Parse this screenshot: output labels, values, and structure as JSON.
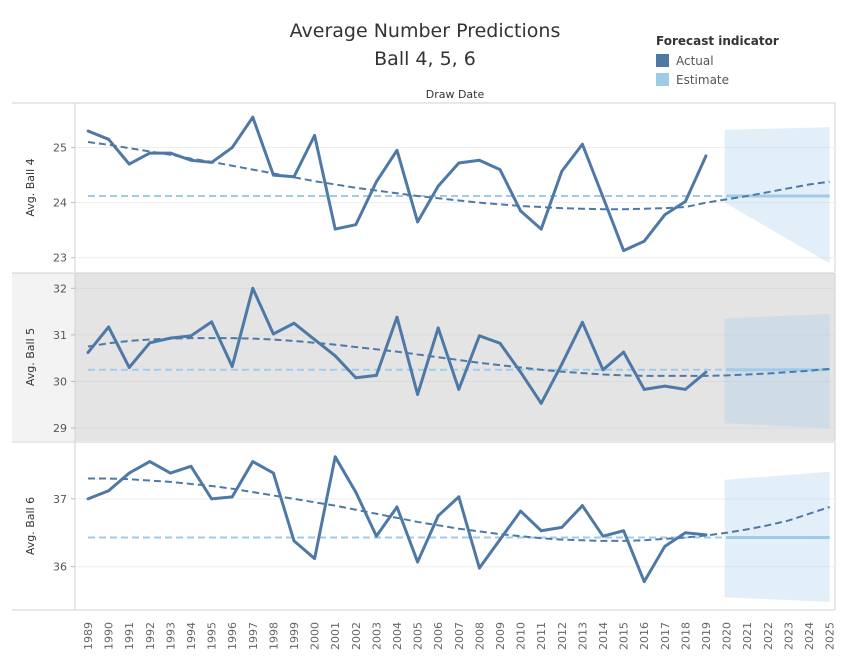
{
  "chart_data": {
    "type": "line",
    "title": "Average Number Predictions",
    "subtitle": "Ball 4, 5, 6",
    "xlabel": "Draw Date",
    "legend": {
      "title": "Forecast indicator",
      "placement": "top-right",
      "items": [
        {
          "label": "Actual",
          "color": "#4e79a7"
        },
        {
          "label": "Estimate",
          "color": "#a0cbe8"
        }
      ]
    },
    "x": [
      "1989",
      "1990",
      "1991",
      "1992",
      "1993",
      "1994",
      "1995",
      "1996",
      "1997",
      "1998",
      "1999",
      "2000",
      "2001",
      "2002",
      "2003",
      "2004",
      "2005",
      "2006",
      "2007",
      "2008",
      "2009",
      "2010",
      "2011",
      "2012",
      "2013",
      "2014",
      "2015",
      "2016",
      "2017",
      "2018",
      "2019",
      "2020",
      "2021",
      "2022",
      "2023",
      "2024",
      "2025"
    ],
    "panels": [
      {
        "ylabel": "Avg. Ball 4",
        "ylim": [
          22.85,
          25.7
        ],
        "yticks": [
          23,
          24,
          25
        ],
        "actual": [
          25.3,
          25.15,
          24.7,
          24.9,
          24.9,
          24.77,
          24.73,
          25.0,
          25.55,
          24.5,
          24.47,
          25.22,
          23.52,
          23.6,
          24.38,
          24.95,
          23.65,
          24.3,
          24.72,
          24.77,
          24.6,
          23.85,
          23.52,
          24.57,
          25.06,
          24.1,
          23.13,
          23.3,
          23.78,
          24.02,
          24.85
        ],
        "trend": [
          25.1,
          25.05,
          24.99,
          24.93,
          24.87,
          24.8,
          24.74,
          24.67,
          24.6,
          24.53,
          24.46,
          24.39,
          24.33,
          24.27,
          24.22,
          24.17,
          24.12,
          24.08,
          24.04,
          24.0,
          23.97,
          23.94,
          23.92,
          23.9,
          23.89,
          23.88,
          23.88,
          23.89,
          23.9,
          23.92,
          24.0,
          24.06,
          24.12,
          24.19,
          24.26,
          24.33,
          24.38
        ],
        "estimate": 24.12,
        "band_start": [
          24.0,
          25.32
        ],
        "band_end": [
          22.9,
          25.37
        ],
        "shaded": false
      },
      {
        "ylabel": "Avg. Ball 5",
        "ylim": [
          28.85,
          32.2
        ],
        "yticks": [
          29,
          30,
          31,
          32
        ],
        "actual": [
          30.62,
          31.17,
          30.3,
          30.83,
          30.93,
          30.98,
          31.28,
          30.32,
          32.0,
          31.02,
          31.25,
          30.9,
          30.55,
          30.08,
          30.13,
          31.38,
          29.72,
          31.15,
          29.83,
          30.98,
          30.82,
          30.2,
          29.53,
          30.37,
          31.27,
          30.25,
          30.63,
          29.83,
          29.9,
          29.83,
          30.2
        ],
        "trend": [
          30.75,
          30.82,
          30.87,
          30.9,
          30.92,
          30.93,
          30.93,
          30.93,
          30.92,
          30.9,
          30.87,
          30.83,
          30.79,
          30.74,
          30.69,
          30.64,
          30.58,
          30.52,
          30.46,
          30.4,
          30.35,
          30.3,
          30.25,
          30.21,
          30.18,
          30.15,
          30.13,
          30.12,
          30.12,
          30.12,
          30.12,
          30.13,
          30.15,
          30.17,
          30.2,
          30.23,
          30.27
        ],
        "estimate": 30.25,
        "band_start": [
          29.1,
          31.35
        ],
        "band_end": [
          29.0,
          31.45
        ],
        "shaded": true
      },
      {
        "ylabel": "Avg. Ball 6",
        "ylim": [
          35.45,
          37.75
        ],
        "yticks": [
          36,
          37
        ],
        "actual": [
          37.0,
          37.12,
          37.38,
          37.55,
          37.38,
          37.48,
          37.0,
          37.03,
          37.55,
          37.38,
          36.38,
          36.12,
          37.62,
          37.1,
          36.45,
          36.88,
          36.07,
          36.75,
          37.03,
          35.98,
          36.4,
          36.82,
          36.53,
          36.58,
          36.9,
          36.45,
          36.53,
          35.78,
          36.3,
          36.5,
          36.47
        ],
        "trend": [
          37.3,
          37.3,
          37.29,
          37.27,
          37.25,
          37.22,
          37.19,
          37.15,
          37.1,
          37.05,
          37.0,
          36.95,
          36.9,
          36.84,
          36.78,
          36.72,
          36.66,
          36.61,
          36.56,
          36.52,
          36.48,
          36.45,
          36.42,
          36.4,
          36.39,
          36.38,
          36.38,
          36.39,
          36.41,
          36.43,
          36.46,
          36.5,
          36.55,
          36.61,
          36.68,
          36.78,
          36.88
        ],
        "estimate": 36.43,
        "band_start": [
          35.55,
          37.28
        ],
        "band_end": [
          35.48,
          37.4
        ],
        "shaded": false
      }
    ]
  }
}
